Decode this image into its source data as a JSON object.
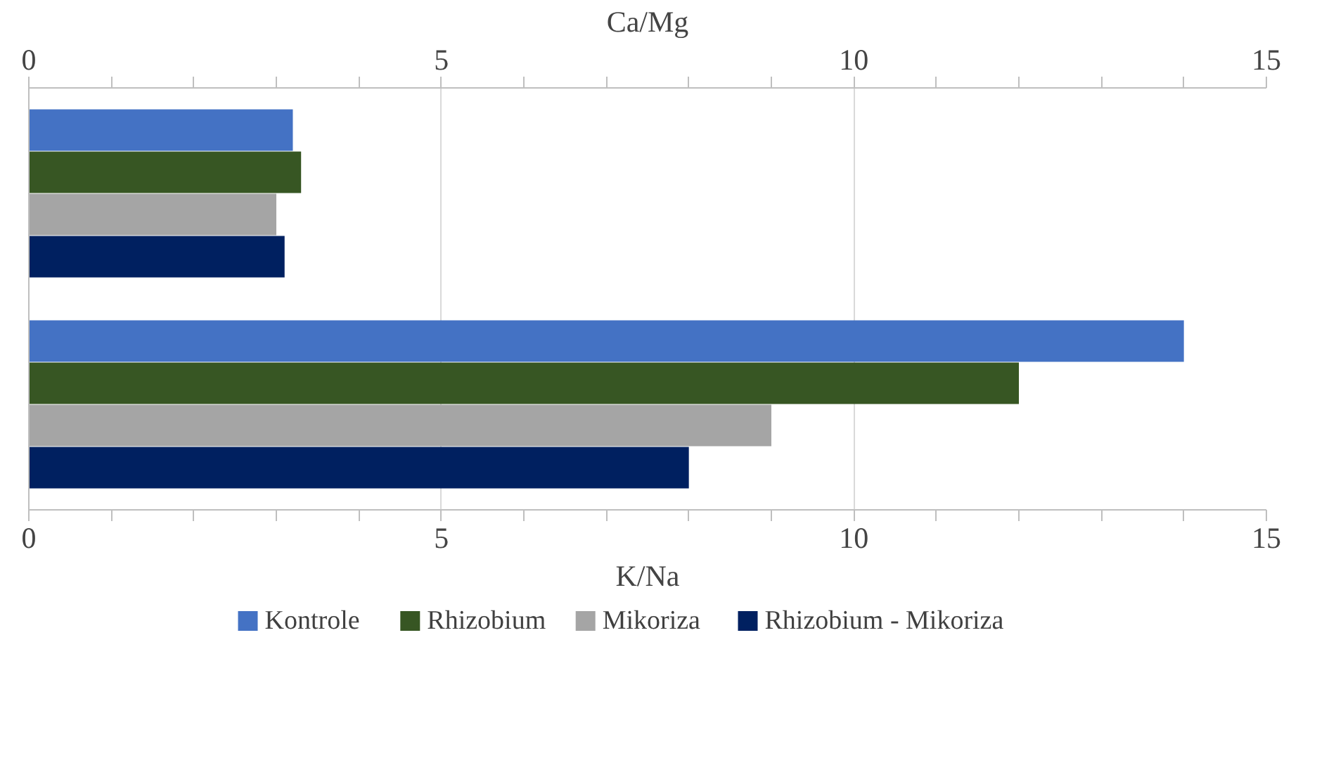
{
  "chart_data": {
    "type": "bar",
    "orientation": "horizontal",
    "categories": [
      null,
      null
    ],
    "series": [
      {
        "name": "Kontrole",
        "color": "#4472c4",
        "values": [
          3.2,
          14.0
        ]
      },
      {
        "name": "Rhizobium",
        "color": "#375623",
        "values": [
          3.3,
          12.0
        ]
      },
      {
        "name": "Mikoriza",
        "color": "#a5a5a5",
        "values": [
          3.0,
          9.0
        ]
      },
      {
        "name": "Rhizobium - Mikoriza",
        "color": "#002060",
        "values": [
          3.1,
          8.0
        ]
      }
    ],
    "xlabel": "K/Na",
    "x2label": "Ca/Mg",
    "xlim": [
      0,
      15
    ],
    "xticks": [
      0,
      5,
      10,
      15
    ],
    "x2lim": [
      0,
      15
    ],
    "x2ticks": [
      0,
      5,
      10,
      15
    ],
    "grid": "x",
    "legend": "bottom"
  }
}
